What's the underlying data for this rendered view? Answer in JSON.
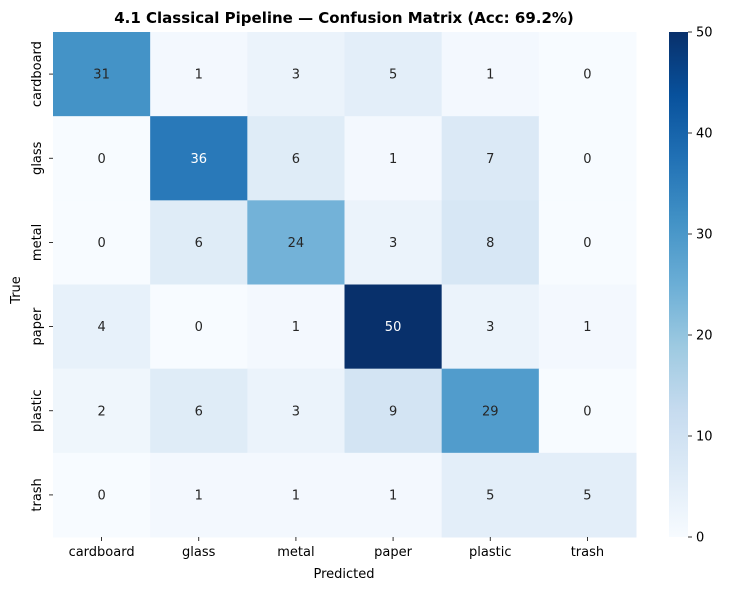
{
  "chart_data": {
    "type": "heatmap",
    "title": "4.1 Classical Pipeline — Confusion Matrix (Acc: 69.2%)",
    "xlabel": "Predicted",
    "ylabel": "True",
    "x_categories": [
      "cardboard",
      "glass",
      "metal",
      "paper",
      "plastic",
      "trash"
    ],
    "y_categories": [
      "cardboard",
      "glass",
      "metal",
      "paper",
      "plastic",
      "trash"
    ],
    "values": [
      [
        31,
        1,
        3,
        5,
        1,
        0
      ],
      [
        0,
        36,
        6,
        1,
        7,
        0
      ],
      [
        0,
        6,
        24,
        3,
        8,
        0
      ],
      [
        4,
        0,
        1,
        50,
        3,
        1
      ],
      [
        2,
        6,
        3,
        9,
        29,
        0
      ],
      [
        0,
        1,
        1,
        1,
        5,
        5
      ]
    ],
    "colorbar": {
      "min": 0,
      "max": 50,
      "ticks": [
        0,
        10,
        20,
        30,
        40,
        50
      ],
      "colormap": "Blues"
    }
  }
}
